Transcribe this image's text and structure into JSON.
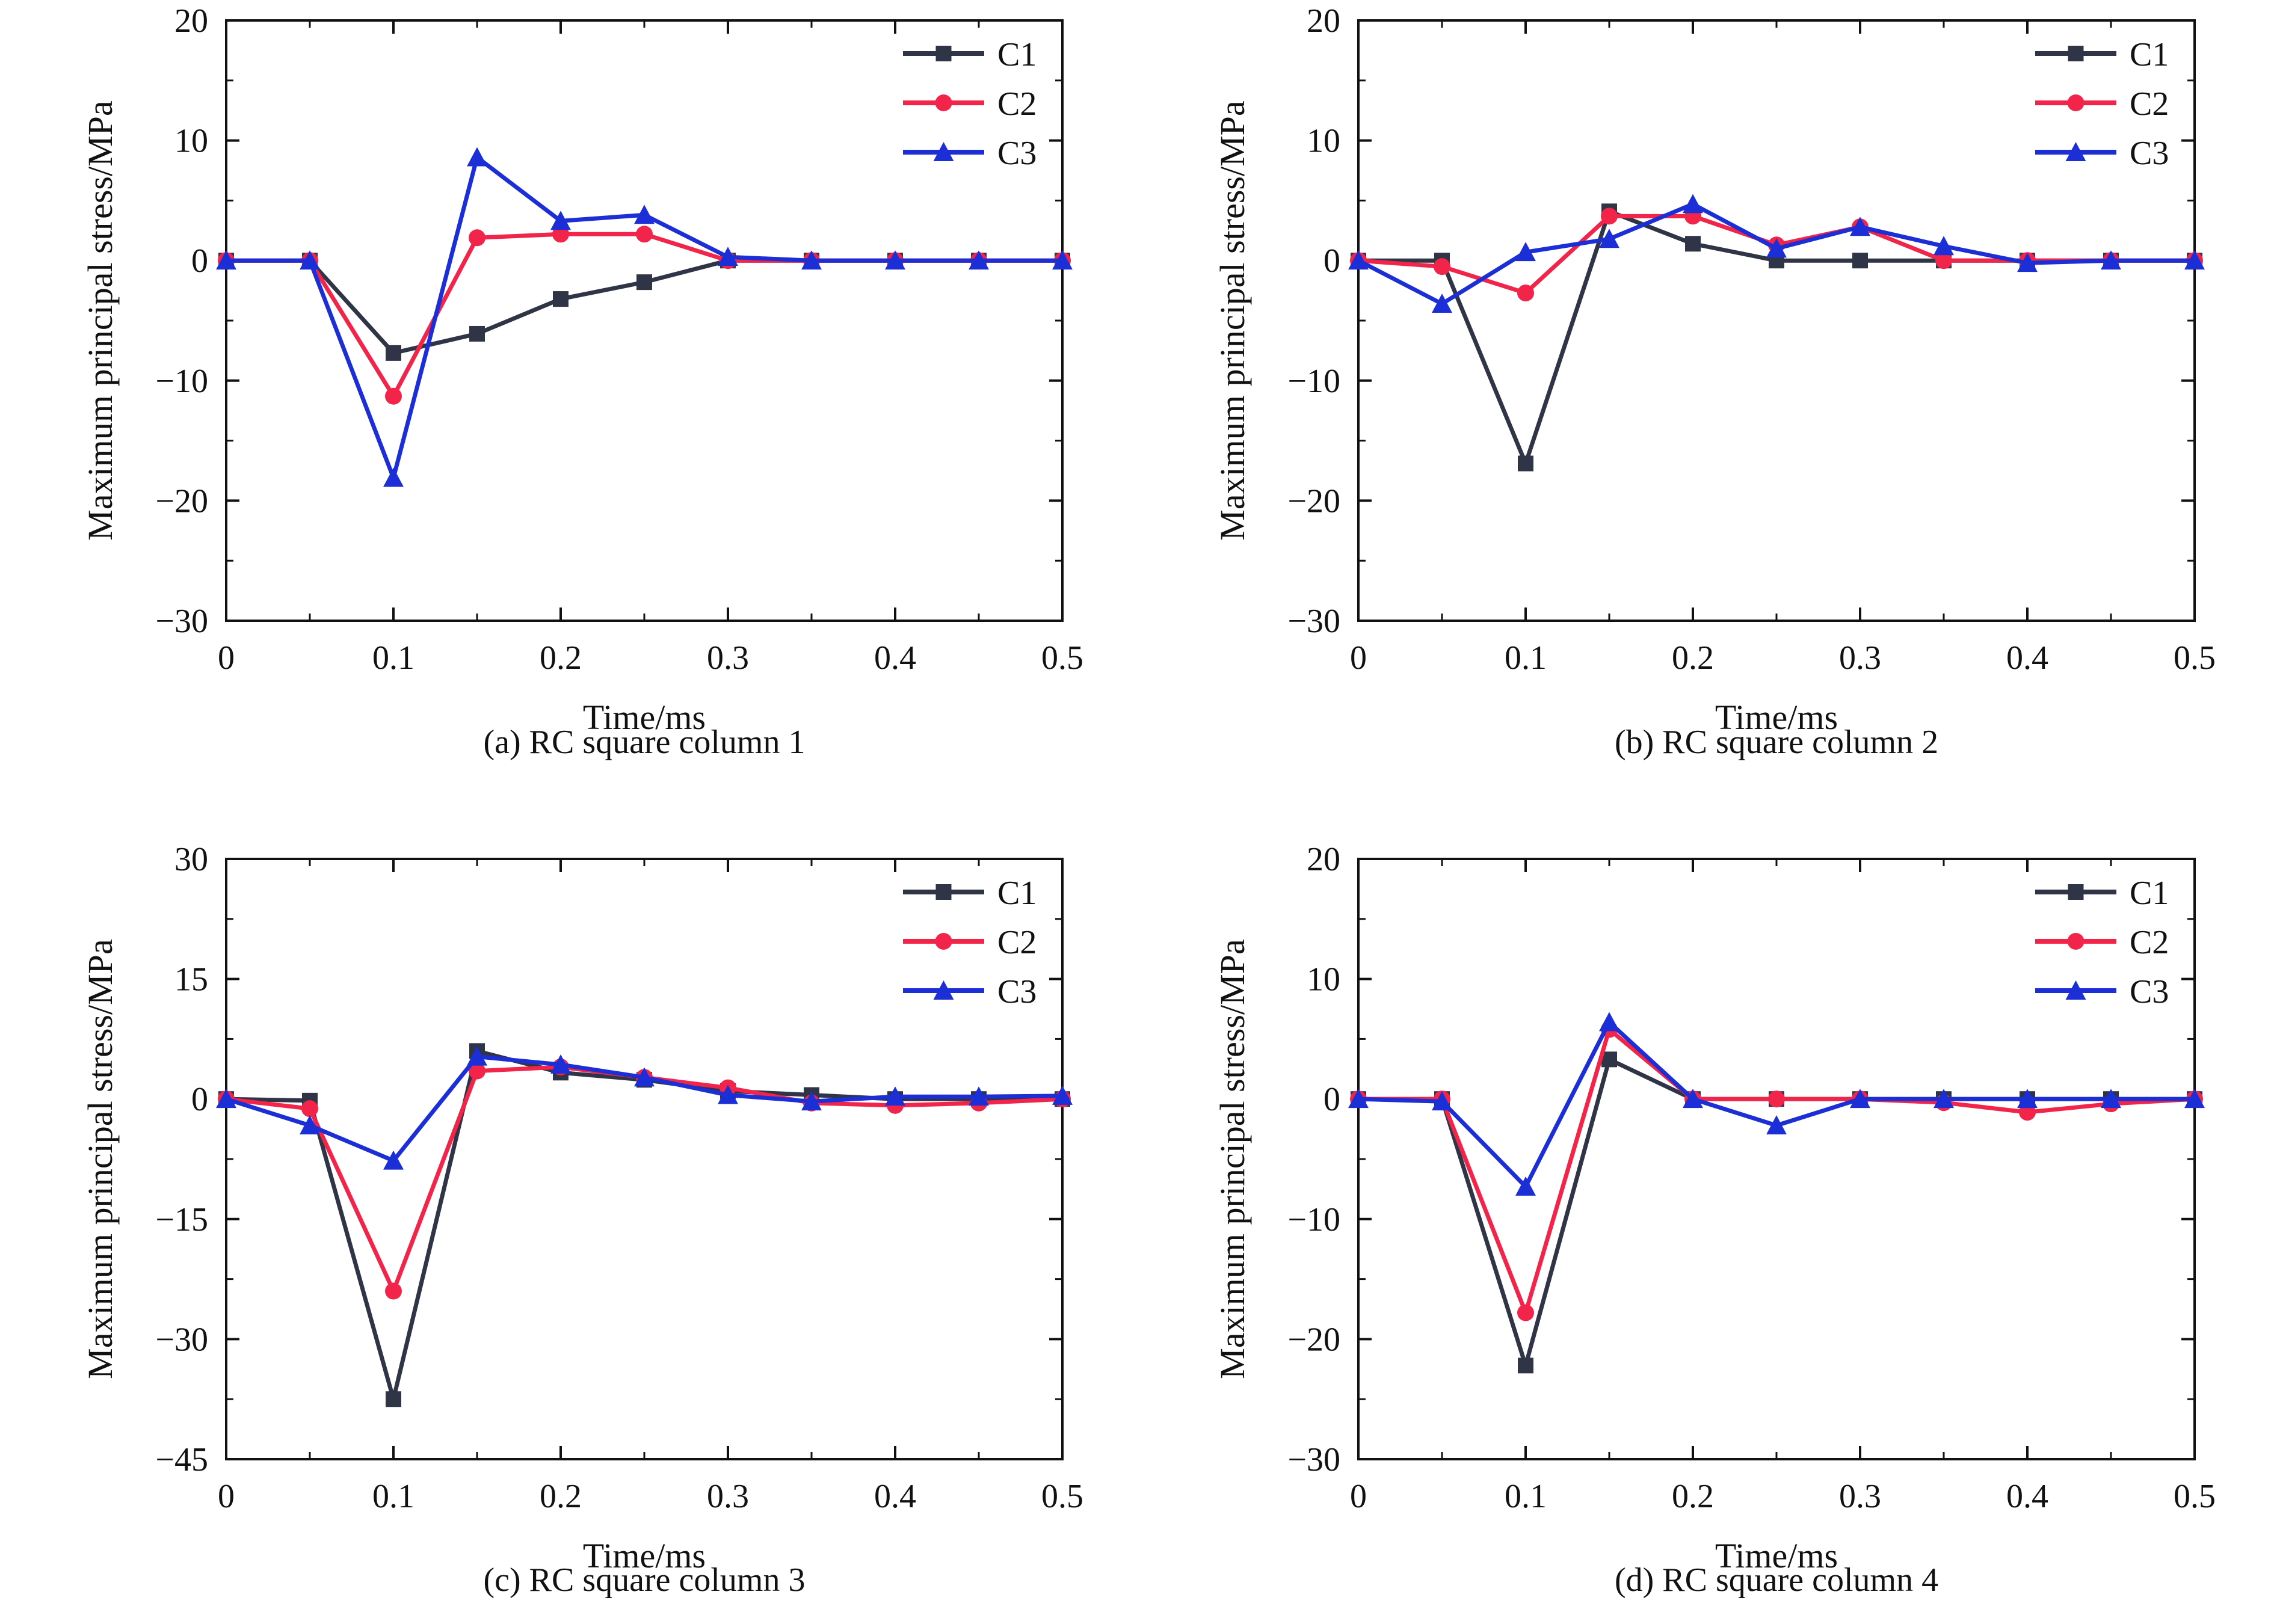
{
  "colors": {
    "C1": "#2f3446",
    "C2": "#f2244a",
    "C3": "#1c2fd6",
    "axis": "#111111"
  },
  "chart_data": [
    {
      "type": "line",
      "caption": "(a) RC square column 1",
      "xlabel": "Time/ms",
      "ylabel": "Maximum principal stress/MPa",
      "xlim": [
        0,
        0.5
      ],
      "ylim": [
        -30,
        20
      ],
      "xticks": [
        0,
        0.1,
        0.2,
        0.3,
        0.4,
        0.5
      ],
      "xtick_labels": [
        "0",
        "0.1",
        "0.2",
        "0.3",
        "0.4",
        "0.5"
      ],
      "yticks": [
        -30,
        -20,
        -10,
        0,
        10,
        20
      ],
      "ytick_labels": [
        "−30",
        "−20",
        "−10",
        "0",
        "10",
        "20"
      ],
      "legend_position": "top-right",
      "x": [
        0,
        0.05,
        0.1,
        0.15,
        0.2,
        0.25,
        0.3,
        0.35,
        0.4,
        0.45,
        0.5
      ],
      "series": [
        {
          "name": "C1",
          "marker": "square",
          "values": [
            0,
            0,
            -7.7,
            -6.1,
            -3.2,
            -1.8,
            0,
            0,
            0,
            0,
            0
          ]
        },
        {
          "name": "C2",
          "marker": "circle",
          "values": [
            0,
            0,
            -11.3,
            1.9,
            2.2,
            2.2,
            0,
            0,
            0,
            0,
            0
          ]
        },
        {
          "name": "C3",
          "marker": "triangle",
          "values": [
            0,
            0,
            -18.1,
            8.6,
            3.3,
            3.8,
            0.3,
            0,
            0,
            0,
            0
          ]
        }
      ]
    },
    {
      "type": "line",
      "caption": "(b) RC square column 2",
      "xlabel": "Time/ms",
      "ylabel": "Maximum principal stress/MPa",
      "xlim": [
        0,
        0.5
      ],
      "ylim": [
        -30,
        20
      ],
      "xticks": [
        0,
        0.1,
        0.2,
        0.3,
        0.4,
        0.5
      ],
      "xtick_labels": [
        "0",
        "0.1",
        "0.2",
        "0.3",
        "0.4",
        "0.5"
      ],
      "yticks": [
        -30,
        -20,
        -10,
        0,
        10,
        20
      ],
      "ytick_labels": [
        "−30",
        "−20",
        "−10",
        "0",
        "10",
        "20"
      ],
      "legend_position": "top-right",
      "x": [
        0,
        0.05,
        0.1,
        0.15,
        0.2,
        0.25,
        0.3,
        0.35,
        0.4,
        0.45,
        0.5
      ],
      "series": [
        {
          "name": "C1",
          "marker": "square",
          "values": [
            0,
            0,
            -16.9,
            4.1,
            1.4,
            0,
            0,
            0,
            0,
            0,
            0
          ]
        },
        {
          "name": "C2",
          "marker": "circle",
          "values": [
            0,
            -0.5,
            -2.7,
            3.7,
            3.7,
            1.3,
            2.8,
            0,
            0,
            0,
            0
          ]
        },
        {
          "name": "C3",
          "marker": "triangle",
          "values": [
            0,
            -3.6,
            0.7,
            1.8,
            4.7,
            1.0,
            2.8,
            1.2,
            -0.2,
            0,
            0
          ]
        }
      ]
    },
    {
      "type": "line",
      "caption": "(c) RC square column 3",
      "xlabel": "Time/ms",
      "ylabel": "Maximum principal stress/MPa",
      "xlim": [
        0,
        0.5
      ],
      "ylim": [
        -45,
        30
      ],
      "xticks": [
        0,
        0.1,
        0.2,
        0.3,
        0.4,
        0.5
      ],
      "xtick_labels": [
        "0",
        "0.1",
        "0.2",
        "0.3",
        "0.4",
        "0.5"
      ],
      "yticks": [
        -45,
        -30,
        -15,
        0,
        15,
        30
      ],
      "ytick_labels": [
        "−45",
        "−30",
        "−15",
        "0",
        "15",
        "30"
      ],
      "legend_position": "top-right",
      "x": [
        0,
        0.05,
        0.1,
        0.15,
        0.2,
        0.25,
        0.3,
        0.35,
        0.4,
        0.45,
        0.5
      ],
      "series": [
        {
          "name": "C1",
          "marker": "square",
          "values": [
            0,
            -0.2,
            -37.5,
            6.0,
            3.3,
            2.4,
            1.0,
            0.5,
            0,
            0,
            0
          ]
        },
        {
          "name": "C2",
          "marker": "circle",
          "values": [
            0,
            -1.2,
            -24.0,
            3.5,
            4.0,
            2.7,
            1.4,
            -0.5,
            -0.8,
            -0.5,
            0
          ]
        },
        {
          "name": "C3",
          "marker": "triangle",
          "values": [
            0,
            -3.3,
            -7.7,
            5.3,
            4.3,
            2.7,
            0.5,
            -0.3,
            0.3,
            0.3,
            0.4
          ]
        }
      ]
    },
    {
      "type": "line",
      "caption": "(d) RC square column 4",
      "xlabel": "Time/ms",
      "ylabel": "Maximum principal stress/MPa",
      "xlim": [
        0,
        0.5
      ],
      "ylim": [
        -30,
        20
      ],
      "xticks": [
        0,
        0.1,
        0.2,
        0.3,
        0.4,
        0.5
      ],
      "xtick_labels": [
        "0",
        "0.1",
        "0.2",
        "0.3",
        "0.4",
        "0.5"
      ],
      "yticks": [
        -30,
        -20,
        -10,
        0,
        10,
        20
      ],
      "ytick_labels": [
        "−30",
        "−20",
        "−10",
        "0",
        "10",
        "20"
      ],
      "legend_position": "top-right",
      "x": [
        0,
        0.05,
        0.1,
        0.15,
        0.2,
        0.25,
        0.3,
        0.35,
        0.4,
        0.45,
        0.5
      ],
      "series": [
        {
          "name": "C1",
          "marker": "square",
          "values": [
            0,
            0,
            -22.2,
            3.3,
            0,
            0,
            0,
            0,
            0,
            0,
            0
          ]
        },
        {
          "name": "C2",
          "marker": "circle",
          "values": [
            0,
            0,
            -17.8,
            5.8,
            0,
            0,
            0,
            -0.3,
            -1.1,
            -0.4,
            0
          ]
        },
        {
          "name": "C3",
          "marker": "triangle",
          "values": [
            0,
            -0.2,
            -7.3,
            6.4,
            0,
            -2.2,
            0,
            0,
            0,
            0,
            0
          ]
        }
      ]
    }
  ]
}
